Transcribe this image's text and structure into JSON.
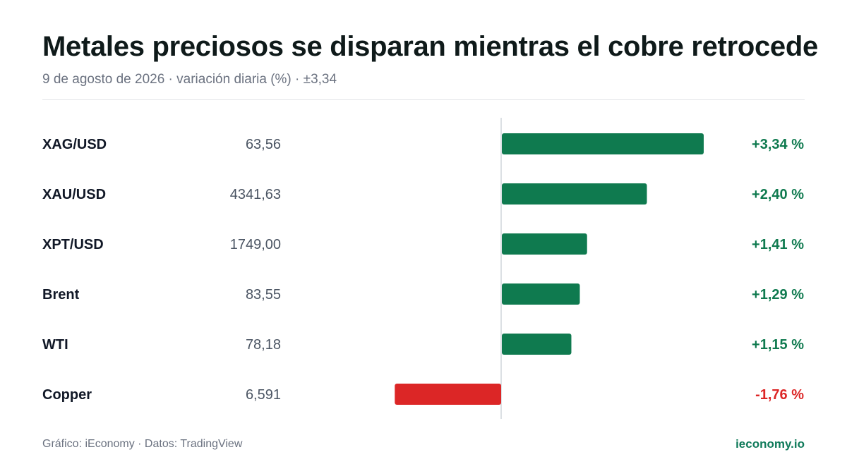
{
  "header": {
    "title": "Metales preciosos se disparan mientras el cobre retrocede",
    "subtitle": "9 de agosto de 2026 · variación diaria (%) · ±3,34"
  },
  "footer": {
    "credit": "Gráfico: iEconomy · Datos: TradingView",
    "brand": "ieconomy.io"
  },
  "colors": {
    "positive": "#0f7a4f",
    "negative": "#dc2626",
    "axis": "#d1d5db"
  },
  "chart_data": {
    "type": "bar",
    "orientation": "horizontal",
    "unit": "%",
    "xlim": [
      -3.34,
      3.34
    ],
    "rows": [
      {
        "name": "XAG/USD",
        "price": "63,56",
        "value": 3.34,
        "label": "+3,34 %"
      },
      {
        "name": "XAU/USD",
        "price": "4341,63",
        "value": 2.4,
        "label": "+2,40 %"
      },
      {
        "name": "XPT/USD",
        "price": "1749,00",
        "value": 1.41,
        "label": "+1,41 %"
      },
      {
        "name": "Brent",
        "price": "83,55",
        "value": 1.29,
        "label": "+1,29 %"
      },
      {
        "name": "WTI",
        "price": "78,18",
        "value": 1.15,
        "label": "+1,15 %"
      },
      {
        "name": "Copper",
        "price": "6,591",
        "value": -1.76,
        "label": "-1,76 %"
      }
    ]
  }
}
